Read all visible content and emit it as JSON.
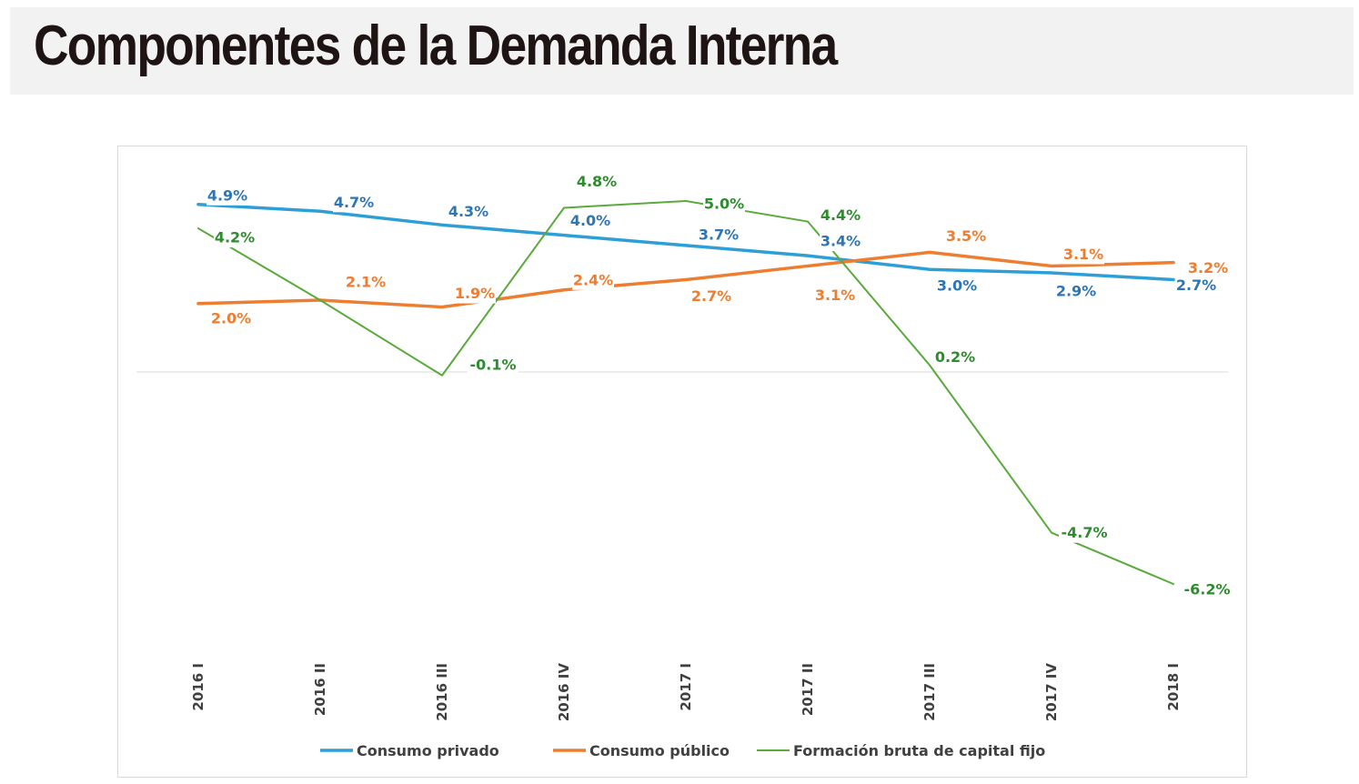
{
  "page": {
    "title": "Componentes de la Demanda Interna"
  },
  "chart_data": {
    "type": "line",
    "title": "",
    "xlabel": "",
    "ylabel": "",
    "categories": [
      "2016 I",
      "2016 II",
      "2016 III",
      "2016 IV",
      "2017 I",
      "2017 II",
      "2017 III",
      "2017 IV",
      "2018 I"
    ],
    "ylim": [
      -8,
      6
    ],
    "grid": false,
    "legend_position": "bottom",
    "series": [
      {
        "name": "Consumo privado",
        "color": "#2e9fd6",
        "label_color": "#2e75b6",
        "values": [
          4.9,
          4.7,
          4.3,
          4.0,
          3.7,
          3.4,
          3.0,
          2.9,
          2.7
        ],
        "labels": [
          "4.9%",
          "4.7%",
          "4.3%",
          "4.0%",
          "3.7%",
          "3.4%",
          "3.0%",
          "2.9%",
          "2.7%"
        ]
      },
      {
        "name": "Consumo público",
        "color": "#ed7d31",
        "label_color": "#ed7d31",
        "values": [
          2.0,
          2.1,
          1.9,
          2.4,
          2.7,
          3.1,
          3.5,
          3.1,
          3.2
        ],
        "labels": [
          "2.0%",
          "2.1%",
          "1.9%",
          "2.4%",
          "2.7%",
          "3.1%",
          "3.5%",
          "3.1%",
          "3.2%"
        ]
      },
      {
        "name": "Formación bruta de capital fijo",
        "color": "#5aaa3c",
        "label_color": "#2e8b2e",
        "values": [
          4.2,
          2.1,
          -0.1,
          4.8,
          5.0,
          4.4,
          0.2,
          -4.7,
          -6.2
        ],
        "labels": [
          "4.2%",
          "",
          "-0.1%",
          "4.8%",
          "5.0%",
          "4.4%",
          "0.2%",
          "-4.7%",
          "-6.2%"
        ]
      }
    ]
  }
}
